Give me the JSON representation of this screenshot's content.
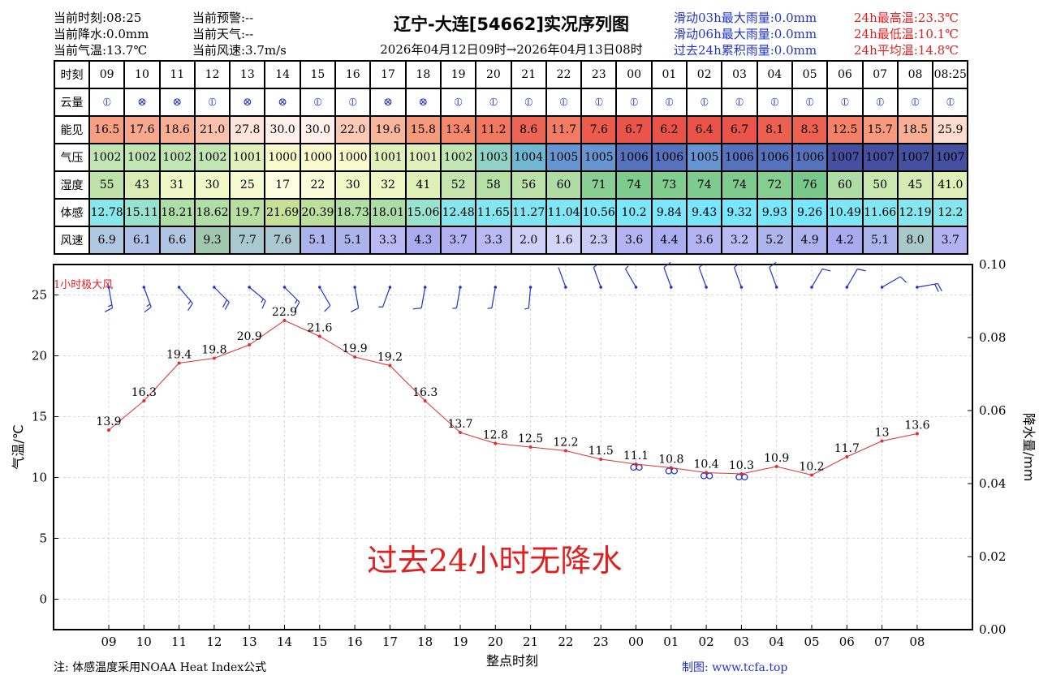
{
  "header": {
    "current_time": "当前时刻:08:25",
    "current_precip": "当前降水:0.0mm",
    "current_temp": "当前气温:13.7℃",
    "current_warning": "当前预警:--",
    "current_weather": "当前天气:--",
    "current_wind": "当前风速:3.7m/s",
    "title": "辽宁-大连[54662]实况序列图",
    "range": "2026年04月12日09时→2026年04月13日08时",
    "rain_03h": "滑动03h最大雨量:0.0mm",
    "rain_06h": "滑动06h最大雨量:0.0mm",
    "rain_24h": "过去24h累积雨量:0.0mm",
    "temp_max": "24h最高温:23.3℃",
    "temp_min": "24h最低温:10.1℃",
    "temp_avg": "24h平均温:14.8℃"
  },
  "table": {
    "row_labels": [
      "时刻",
      "云量",
      "能见",
      "气压",
      "湿度",
      "体感",
      "风速"
    ],
    "hours": [
      "09",
      "10",
      "11",
      "12",
      "13",
      "14",
      "15",
      "16",
      "17",
      "18",
      "19",
      "20",
      "21",
      "22",
      "23",
      "00",
      "01",
      "02",
      "03",
      "04",
      "05",
      "06",
      "07",
      "08",
      "08:25"
    ],
    "cloud": [
      "⦶",
      "⊗",
      "⊗",
      "⦶",
      "⊗",
      "⊗",
      "⦶",
      "⦶",
      "⊗",
      "⊗",
      "⦶",
      "⦶",
      "⦶",
      "⦶",
      "⦶",
      "⦶",
      "⦶",
      "⦶",
      "⦶",
      "⦶",
      "⦶",
      "⦶",
      "⦶",
      "⦶",
      "⦶"
    ],
    "visibility": [
      "16.5",
      "17.6",
      "18.6",
      "21.0",
      "27.8",
      "30.0",
      "30.0",
      "22.0",
      "19.6",
      "15.8",
      "13.4",
      "11.2",
      "8.6",
      "11.7",
      "7.6",
      "6.7",
      "6.2",
      "6.4",
      "6.7",
      "8.1",
      "8.3",
      "12.5",
      "15.7",
      "18.5",
      "25.9"
    ],
    "pressure": [
      "1002",
      "1002",
      "1002",
      "1002",
      "1001",
      "1000",
      "1000",
      "1000",
      "1001",
      "1001",
      "1002",
      "1003",
      "1004",
      "1005",
      "1005",
      "1006",
      "1006",
      "1005",
      "1006",
      "1006",
      "1006",
      "1007",
      "1007",
      "1007",
      "1007"
    ],
    "humidity": [
      "55",
      "43",
      "31",
      "30",
      "25",
      "17",
      "22",
      "30",
      "32",
      "41",
      "52",
      "58",
      "56",
      "60",
      "71",
      "74",
      "73",
      "74",
      "74",
      "72",
      "76",
      "60",
      "50",
      "45",
      "41.0"
    ],
    "feels_like": [
      "12.78",
      "15.11",
      "18.21",
      "18.62",
      "19.7",
      "21.69",
      "20.39",
      "18.73",
      "18.01",
      "15.06",
      "12.48",
      "11.65",
      "11.27",
      "11.04",
      "10.56",
      "10.2",
      "9.84",
      "9.43",
      "9.32",
      "9.93",
      "9.26",
      "10.49",
      "11.66",
      "12.19",
      "12.2"
    ],
    "wind_speed": [
      "6.9",
      "6.1",
      "6.6",
      "9.3",
      "7.7",
      "7.6",
      "5.1",
      "5.1",
      "3.3",
      "4.3",
      "3.7",
      "3.3",
      "2.0",
      "1.6",
      "2.3",
      "3.6",
      "4.4",
      "3.6",
      "3.2",
      "5.2",
      "4.9",
      "4.2",
      "5.1",
      "8.0",
      "3.7"
    ]
  },
  "colors": {
    "temp_line": "#e03030",
    "barb": "#2233cc",
    "note_red": "#e02020"
  },
  "chart_data": {
    "type": "line",
    "x": [
      "09",
      "10",
      "11",
      "12",
      "13",
      "14",
      "15",
      "16",
      "17",
      "18",
      "19",
      "20",
      "21",
      "22",
      "23",
      "00",
      "01",
      "02",
      "03",
      "04",
      "05",
      "06",
      "07",
      "08"
    ],
    "series": [
      {
        "values": [
          13.9,
          16.3,
          19.4,
          19.8,
          20.9,
          22.9,
          21.6,
          19.9,
          19.2,
          16.3,
          13.7,
          12.8,
          12.5,
          12.2,
          11.5,
          11.1,
          10.8,
          10.4,
          10.3,
          10.9,
          10.2,
          11.7,
          13.0,
          13.6
        ]
      }
    ],
    "wind_speed": [
      6.9,
      6.1,
      6.6,
      9.3,
      7.7,
      7.6,
      5.1,
      5.1,
      3.3,
      4.3,
      3.7,
      3.3,
      2.0,
      1.6,
      2.3,
      3.6,
      4.4,
      3.6,
      3.2,
      5.2,
      4.9,
      4.2,
      5.1,
      8.0
    ],
    "wind_direction_deg": [
      10,
      20,
      40,
      45,
      50,
      45,
      30,
      10,
      340,
      350,
      350,
      350,
      355,
      200,
      200,
      210,
      200,
      200,
      200,
      200,
      150,
      150,
      120,
      100
    ],
    "fog_hours": [
      "00",
      "01",
      "02",
      "03"
    ],
    "xlabel": "整点时刻",
    "ylabel": "气温/℃",
    "y2label": "降水量/mm",
    "ylim": [
      -2.5,
      27.5
    ],
    "yticks": [
      "0",
      "5",
      "10",
      "15",
      "20",
      "25"
    ],
    "y2lim": [
      0,
      0.1
    ],
    "y2ticks": [
      "0.00",
      "0.02",
      "0.04",
      "0.06",
      "0.08",
      "0.10"
    ],
    "annotation_gust": "1小时极大风",
    "annotation_no_rain": "过去24小时无降水",
    "grid": true
  },
  "footer": {
    "note": "注: 体感温度采用NOAA Heat Index公式",
    "credit": "制图: www.tcfa.top"
  }
}
